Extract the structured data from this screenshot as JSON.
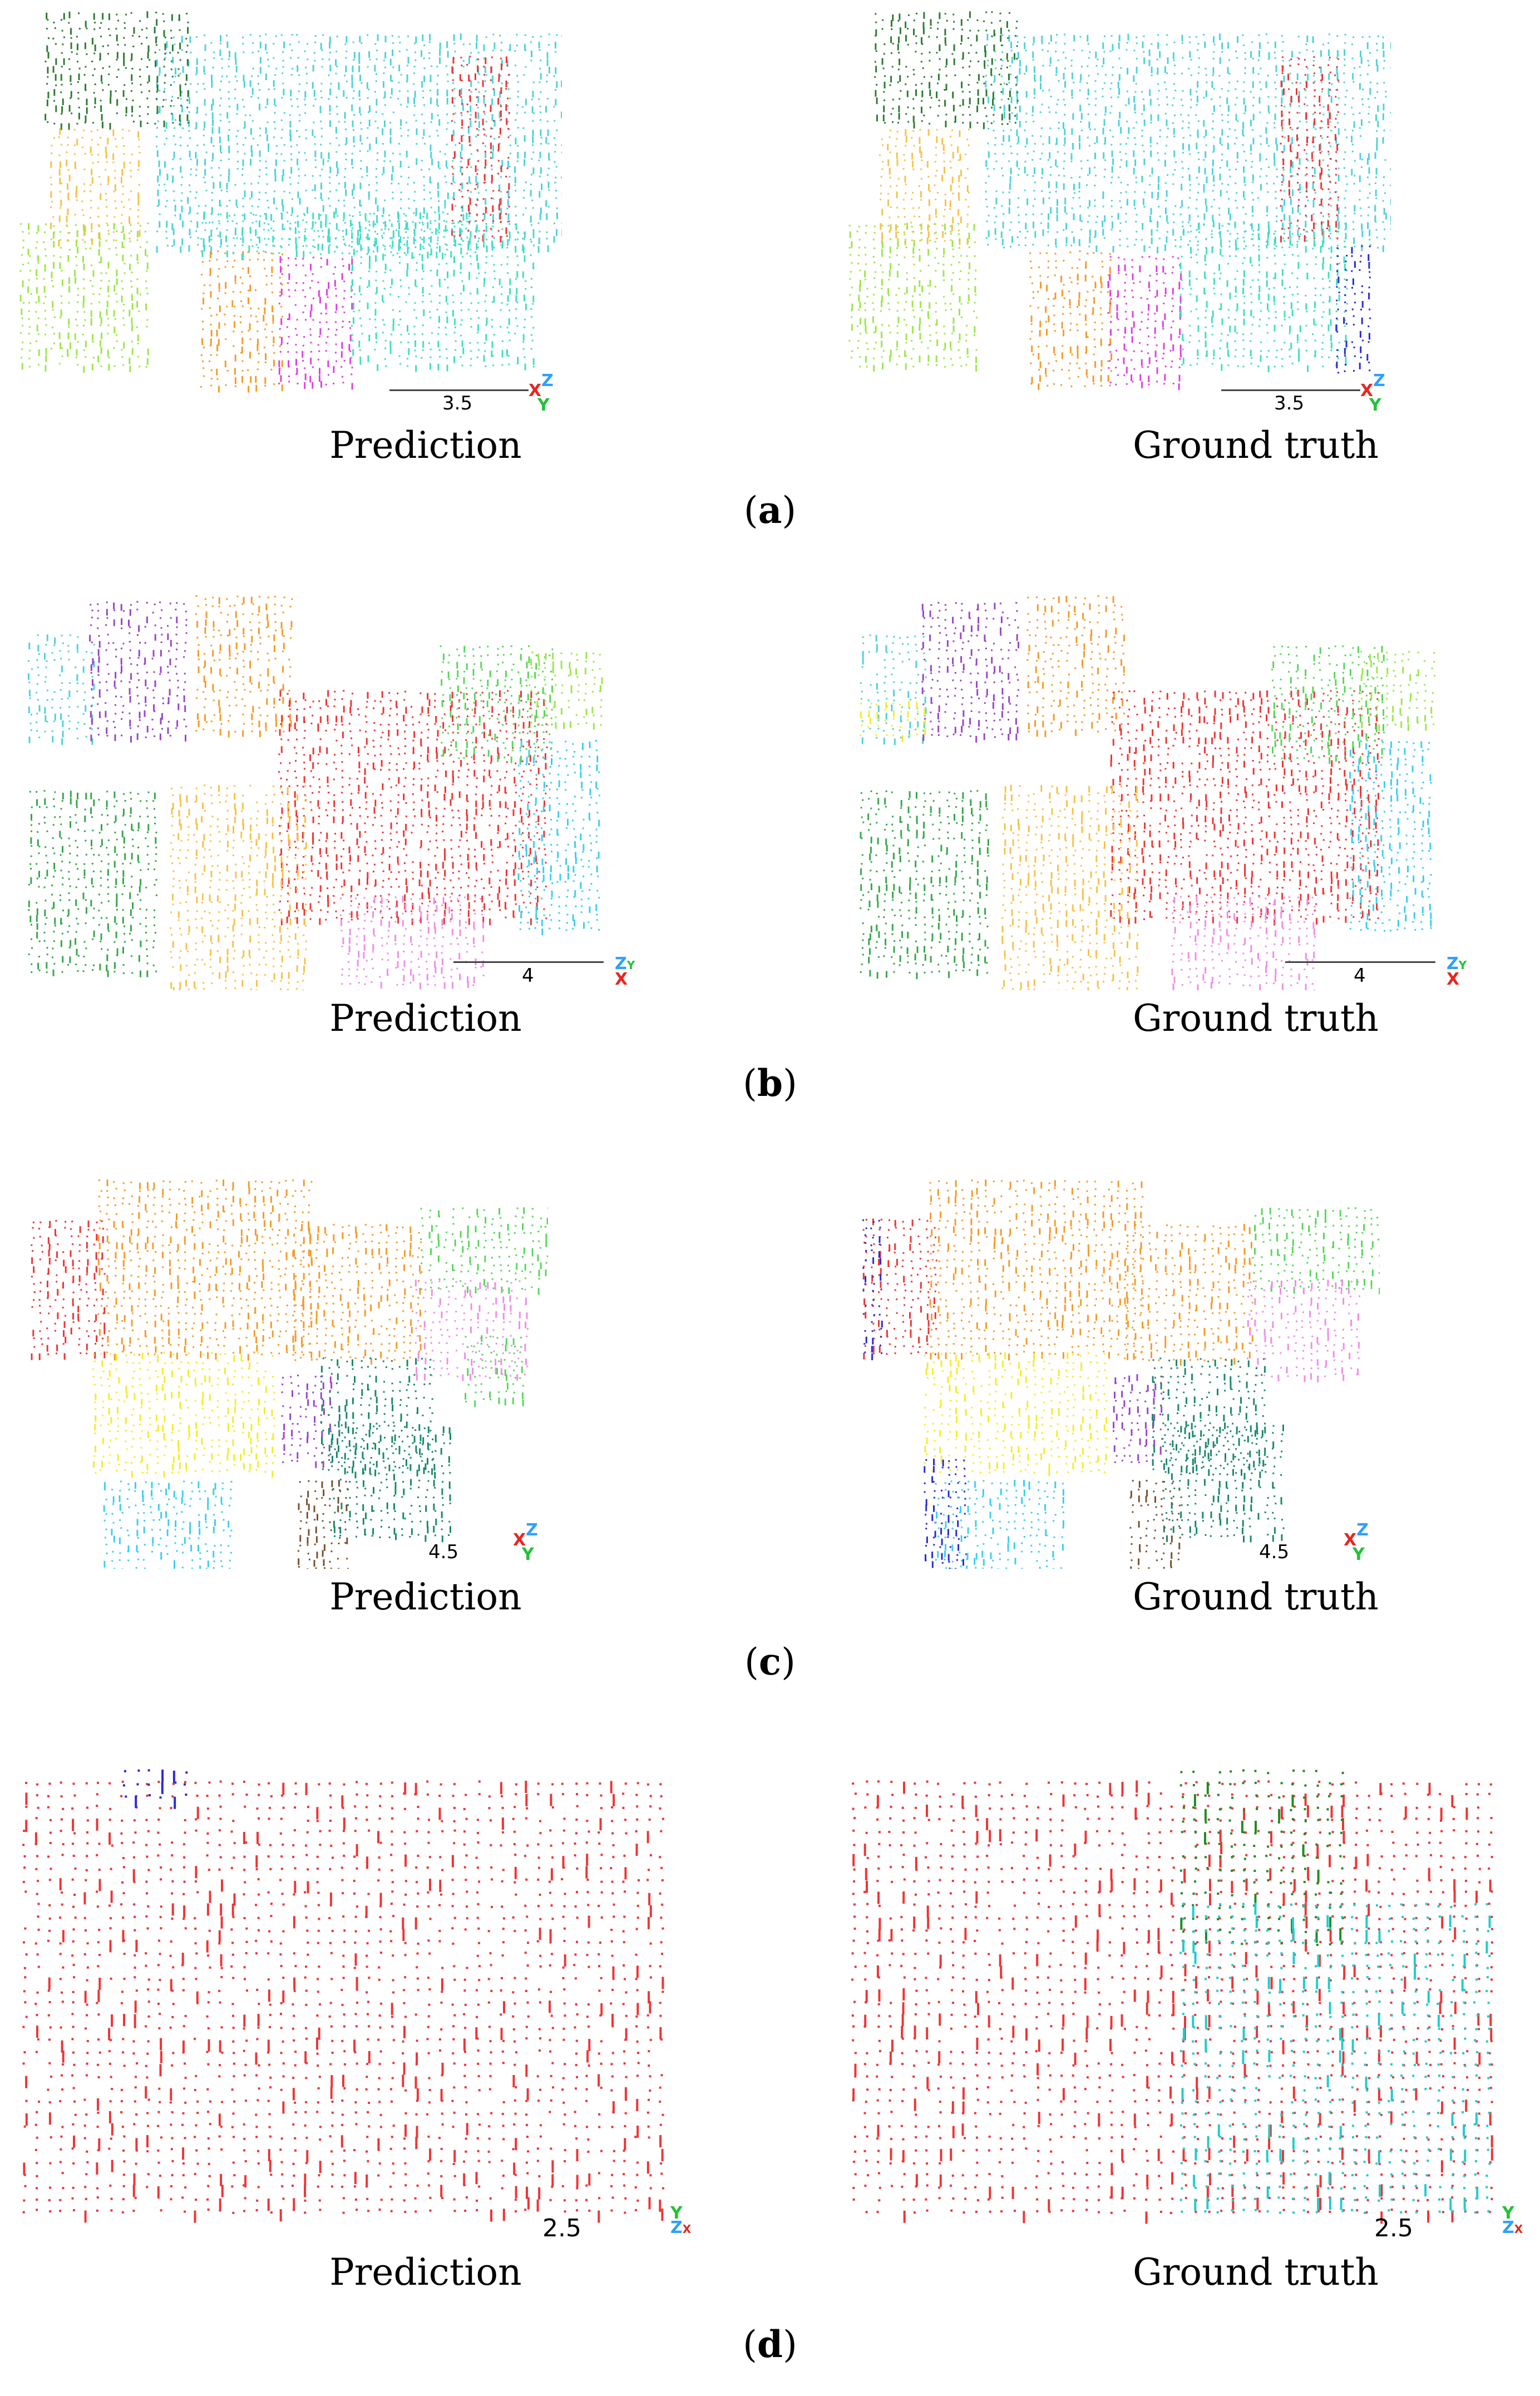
{
  "figure": {
    "rows": [
      {
        "id": "a",
        "label_open": "(",
        "label_letter": "a",
        "label_close": ")",
        "left_caption": "Prediction",
        "right_caption": "Ground truth",
        "scale_value": "3.5",
        "axis_letters": [
          "X",
          "Z",
          "Y"
        ],
        "axis_colors": [
          "#e8261f",
          "#2fa0ff",
          "#23c23a"
        ]
      },
      {
        "id": "b",
        "label_open": "(",
        "label_letter": "b",
        "label_close": ")",
        "left_caption": "Prediction",
        "right_caption": "Ground truth",
        "scale_value": "4",
        "axis_letters": [
          "Z",
          "Y",
          "X"
        ],
        "axis_colors": [
          "#2fa0ff",
          "#23c23a",
          "#e8261f"
        ]
      },
      {
        "id": "c",
        "label_open": "(",
        "label_letter": "c",
        "label_close": ")",
        "left_caption": "Prediction",
        "right_caption": "Ground truth",
        "scale_value": "4.5",
        "axis_letters": [
          "X",
          "Z",
          "Y"
        ],
        "axis_colors": [
          "#e8261f",
          "#2fa0ff",
          "#23c23a"
        ]
      },
      {
        "id": "d",
        "label_open": "(",
        "label_letter": "d",
        "label_close": ")",
        "left_caption": "Prediction",
        "right_caption": "Ground truth",
        "scale_value": "2.5",
        "axis_letters": [
          "Y",
          "Z",
          "X"
        ],
        "axis_colors": [
          "#23c23a",
          "#2fa0ff",
          "#e8261f"
        ]
      }
    ],
    "palette": {
      "dark_green": "#2e7d32",
      "cyan": "#4fd3d9",
      "red": "#ef3535",
      "yellow_orange": "#f7c24a",
      "lime": "#9be84a",
      "orange": "#f59b2a",
      "magenta": "#e040e0",
      "teal": "#40e0c0",
      "blue": "#2b2bd6",
      "purple": "#9b46c9",
      "green": "#36a84a",
      "sky": "#3ad0f0",
      "pink": "#f08ee8",
      "yellow": "#f5ec2a",
      "dkteal": "#1a8a6a",
      "brown": "#7a5230",
      "lgreen": "#56d85a",
      "tgreen": "#228b22",
      "turq": "#22cccc"
    }
  }
}
